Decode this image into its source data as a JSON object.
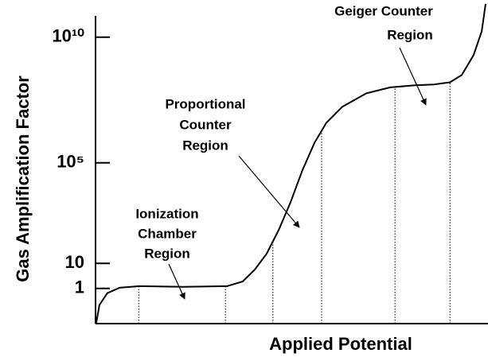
{
  "chart_data": {
    "type": "line",
    "ylabel": "Gas Amplification Factor",
    "xlabel": "Applied Potential",
    "ylog": true,
    "ylim": [
      0.04,
      300000000000
    ],
    "yticks": [
      1,
      10,
      {
        "value": 100000,
        "label": "10⁵"
      },
      {
        "value": 10000000000,
        "label": "10¹⁰"
      }
    ],
    "xlim": [
      0,
      100
    ],
    "color": "#000000",
    "x": [
      0.2,
      1.0,
      3.0,
      6.1,
      11.2,
      22.3,
      33.5,
      37.5,
      40.6,
      43.6,
      46.7,
      49.7,
      52.7,
      55.8,
      58.8,
      62.9,
      69.0,
      75.1,
      81.1,
      86.2,
      90.3,
      93.3,
      96.3,
      98.4,
      99.4
    ],
    "values": [
      0.044,
      0.22,
      0.65,
      1.07,
      1.24,
      1.16,
      1.24,
      1.9,
      5.7,
      24,
      216,
      2700,
      50000,
      630000,
      3900000,
      17000000,
      58000000,
      100000000,
      120000000,
      130000000,
      160000000,
      310000000,
      1900000000,
      17000000000,
      210000000000
    ],
    "boundaries": [
      11.0,
      33.1,
      45.2,
      57.6,
      76.3,
      90.3
    ],
    "annotations": [
      {
        "lines": [
          "Ionization",
          "Chamber",
          "Region"
        ]
      },
      {
        "lines": [
          "Proportional",
          "Counter",
          "Region"
        ]
      },
      {
        "lines": [
          "Geiger  Counter",
          "Region"
        ]
      }
    ]
  }
}
